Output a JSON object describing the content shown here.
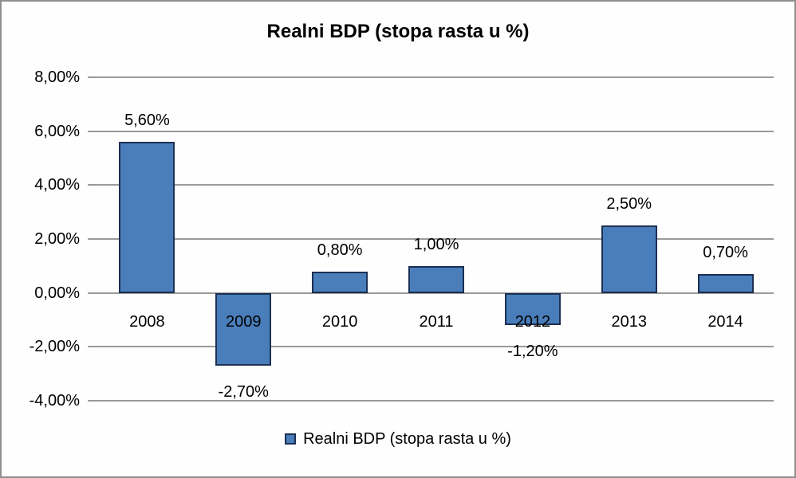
{
  "frame": {
    "background": "#fefefe",
    "border_color": "#8f8f8f"
  },
  "chart_data": {
    "type": "bar",
    "title": "Realni BDP (stopa rasta u %)",
    "categories": [
      "2008",
      "2009",
      "2010",
      "2011",
      "2012",
      "2013",
      "2014"
    ],
    "values": [
      5.6,
      -2.7,
      0.8,
      1.0,
      -1.2,
      2.5,
      0.7
    ],
    "data_labels": [
      "5,60%",
      "-2,70%",
      "0,80%",
      "1,00%",
      "-1,20%",
      "2,50%",
      "0,70%"
    ],
    "y_ticks": [
      {
        "value": 8,
        "label": "8,00%"
      },
      {
        "value": 6,
        "label": "6,00%"
      },
      {
        "value": 4,
        "label": "4,00%"
      },
      {
        "value": 2,
        "label": "2,00%"
      },
      {
        "value": 0,
        "label": "0,00%"
      },
      {
        "value": -2,
        "label": "-2,00%"
      },
      {
        "value": -4,
        "label": "-4,00%"
      }
    ],
    "ylim": [
      -4,
      8
    ],
    "xlabel": "",
    "ylabel": "",
    "grid": true,
    "legend": {
      "position": "bottom",
      "label": "Realni BDP (stopa rasta u %)"
    },
    "colors": {
      "bar_fill": "#4a7ebb",
      "bar_border": "#1c2f52",
      "gridline": "#9a9a9a",
      "text": "#000000"
    }
  }
}
